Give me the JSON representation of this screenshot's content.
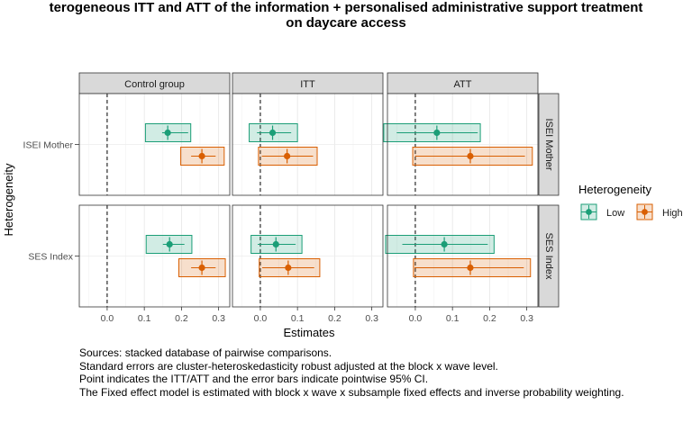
{
  "title": {
    "line1": "terogeneous ITT and ATT of the information + personalised administrative support treatment",
    "line2": "on daycare access"
  },
  "caption": [
    "Sources: stacked database of pairwise comparisons.",
    "Standard errors are cluster-heteroskedasticity robust adjusted at the block x wave level.",
    "Point indicates the ITT/ATT and the error bars indicate pointwise 95% CI.",
    "The Fixed effect model is estimated with block x wave x subsample fixed effects and inverse probability weighting."
  ],
  "legend": {
    "title": "Heterogeneity",
    "position": "right"
  },
  "colors": {
    "Low": "#1b9e77",
    "High": "#d95f02",
    "strip_bg": "#d9d9d9"
  },
  "chart_data": {
    "type": "forest",
    "xlabel": "Estimates",
    "ylabel": "Heterogeneity",
    "xlim": [
      -0.075,
      0.33
    ],
    "xticks": [
      0.0,
      0.1,
      0.2,
      0.3
    ],
    "xtick_labels": [
      "0.0",
      "0.1",
      "0.2",
      "0.3"
    ],
    "reference_line": 0,
    "grid": true,
    "columns": [
      "Control group",
      "ITT",
      "ATT"
    ],
    "rows": [
      "ISEI Mother",
      "SES Index"
    ],
    "series": [
      {
        "name": "Low",
        "color": "#1b9e77"
      },
      {
        "name": "High",
        "color": "#d95f02"
      }
    ],
    "panels": [
      {
        "row": "ISEI Mother",
        "column": "Control group",
        "estimates": [
          {
            "group": "Low",
            "estimate": 0.163,
            "ci": [
              0.148,
              0.218
            ],
            "box": [
              0.103,
              0.225
            ]
          },
          {
            "group": "High",
            "estimate": 0.255,
            "ci": [
              0.226,
              0.292
            ],
            "box": [
              0.198,
              0.315
            ]
          }
        ]
      },
      {
        "row": "ISEI Mother",
        "column": "ITT",
        "estimates": [
          {
            "group": "Low",
            "estimate": 0.033,
            "ci": [
              -0.009,
              0.083
            ],
            "box": [
              -0.03,
              0.1
            ]
          },
          {
            "group": "High",
            "estimate": 0.072,
            "ci": [
              0.004,
              0.142
            ],
            "box": [
              -0.005,
              0.153
            ]
          }
        ]
      },
      {
        "row": "ISEI Mother",
        "column": "ATT",
        "estimates": [
          {
            "group": "Low",
            "estimate": 0.058,
            "ci": [
              -0.05,
              0.168
            ],
            "box": [
              -0.085,
              0.175
            ]
          },
          {
            "group": "High",
            "estimate": 0.148,
            "ci": [
              0.0,
              0.295
            ],
            "box": [
              -0.007,
              0.315
            ]
          }
        ]
      },
      {
        "row": "SES Index",
        "column": "Control group",
        "estimates": [
          {
            "group": "Low",
            "estimate": 0.168,
            "ci": [
              0.15,
              0.208
            ],
            "box": [
              0.105,
              0.228
            ]
          },
          {
            "group": "High",
            "estimate": 0.255,
            "ci": [
              0.226,
              0.292
            ],
            "box": [
              0.193,
              0.318
            ]
          }
        ]
      },
      {
        "row": "SES Index",
        "column": "ITT",
        "estimates": [
          {
            "group": "Low",
            "estimate": 0.042,
            "ci": [
              -0.007,
              0.095
            ],
            "box": [
              -0.025,
              0.112
            ]
          },
          {
            "group": "High",
            "estimate": 0.075,
            "ci": [
              0.005,
              0.145
            ],
            "box": [
              -0.003,
              0.16
            ]
          }
        ]
      },
      {
        "row": "SES Index",
        "column": "ATT",
        "estimates": [
          {
            "group": "Low",
            "estimate": 0.078,
            "ci": [
              -0.035,
              0.195
            ],
            "box": [
              -0.08,
              0.212
            ]
          },
          {
            "group": "High",
            "estimate": 0.148,
            "ci": [
              -0.002,
              0.292
            ],
            "box": [
              -0.005,
              0.31
            ]
          }
        ]
      }
    ]
  }
}
